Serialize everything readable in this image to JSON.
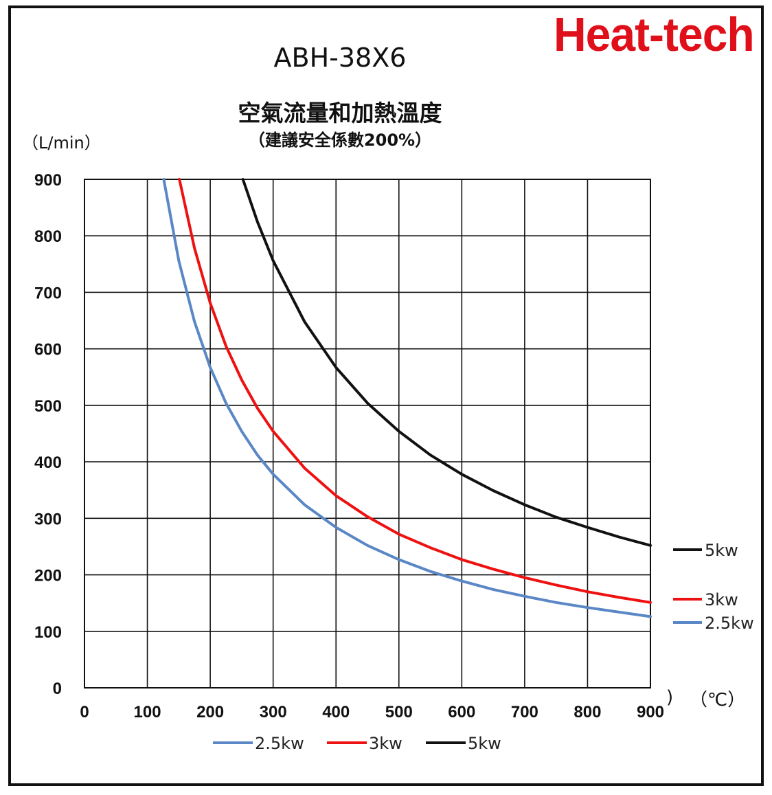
{
  "brand": "Heat-tech",
  "chart_data": {
    "type": "line",
    "title": "ABH-38X6",
    "subtitle": "空氣流量和加熱溫度",
    "subtitle2": "（建議安全係數200%）",
    "ylabel": "（L/min）",
    "xlabel": "（℃）",
    "xlabel_fragment": ")",
    "xlim": [
      0,
      900
    ],
    "ylim": [
      0,
      900
    ],
    "xticks": [
      "0",
      "100",
      "200",
      "300",
      "400",
      "500",
      "600",
      "700",
      "800",
      "900"
    ],
    "yticks": [
      "0",
      "100",
      "200",
      "300",
      "400",
      "500",
      "600",
      "700",
      "800",
      "900"
    ],
    "grid": true,
    "legend_position": "bottom",
    "series": [
      {
        "name": "2.5kw",
        "color": "#5a87c5",
        "x": [
          126,
          150,
          175,
          200,
          225,
          250,
          275,
          300,
          350,
          400,
          450,
          500,
          550,
          600,
          650,
          700,
          750,
          800,
          850,
          900
        ],
        "y": [
          900,
          756,
          648,
          567,
          504,
          454,
          412,
          378,
          324,
          284,
          252,
          227,
          206,
          189,
          174,
          162,
          151,
          142,
          134,
          126
        ]
      },
      {
        "name": "3kw",
        "color": "#ee1111",
        "x": [
          151,
          175,
          200,
          225,
          250,
          275,
          300,
          350,
          400,
          450,
          500,
          550,
          600,
          650,
          700,
          750,
          800,
          850,
          900
        ],
        "y": [
          900,
          778,
          681,
          605,
          545,
          495,
          454,
          389,
          340,
          303,
          272,
          248,
          227,
          210,
          195,
          182,
          170,
          160,
          151
        ]
      },
      {
        "name": "5kw",
        "color": "#111111",
        "x": [
          252,
          275,
          300,
          350,
          400,
          450,
          500,
          550,
          600,
          650,
          700,
          750,
          800,
          850,
          900
        ],
        "y": [
          900,
          825,
          756,
          648,
          567,
          504,
          454,
          412,
          378,
          349,
          324,
          302,
          284,
          267,
          252
        ]
      }
    ],
    "end_labels": [
      "5kw",
      "3kw",
      "2.5kw"
    ],
    "legend": [
      "2.5kw",
      "3kw",
      "5kw"
    ]
  }
}
